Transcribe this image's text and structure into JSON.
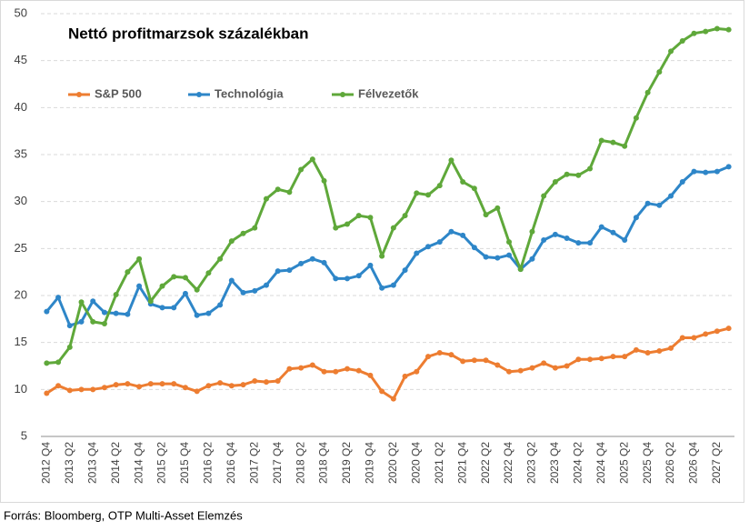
{
  "chart_data": {
    "type": "line",
    "title": "Nettó profitmarzsok százalékban",
    "source": "Forrás: Bloomberg, OTP Multi-Asset Elemzés",
    "categories": [
      "2012 Q4",
      null,
      "2013 Q2",
      null,
      "2013 Q4",
      null,
      "2014 Q2",
      null,
      "2014 Q4",
      null,
      "2015 Q2",
      null,
      "2015 Q4",
      null,
      "2016 Q2",
      null,
      "2016 Q4",
      null,
      "2017 Q2",
      null,
      "2017 Q4",
      null,
      "2018 Q2",
      null,
      "2018 Q4",
      null,
      "2019 Q2",
      null,
      "2019 Q4",
      null,
      "2020 Q2",
      null,
      "2020 Q4",
      null,
      "2021 Q2",
      null,
      "2021 Q4",
      null,
      "2022 Q2",
      null,
      "2022 Q4",
      null,
      "2023 Q2",
      null,
      "2023 Q4",
      null,
      "2024 Q2",
      null,
      "2024 Q4",
      null,
      "2025 Q2",
      null,
      "2025 Q4",
      null,
      "2026 Q2",
      null,
      "2026 Q4",
      null,
      "2027 Q2",
      null
    ],
    "series": [
      {
        "name": "S&P 500",
        "color": "#ed7d31",
        "values": [
          9.6,
          10.4,
          9.9,
          10.0,
          10.0,
          10.2,
          10.5,
          10.6,
          10.3,
          10.6,
          10.6,
          10.6,
          10.2,
          9.8,
          10.4,
          10.7,
          10.4,
          10.5,
          10.9,
          10.8,
          10.9,
          12.2,
          12.3,
          12.6,
          11.9,
          11.9,
          12.2,
          12.0,
          11.5,
          9.8,
          9.0,
          11.4,
          11.9,
          13.5,
          13.9,
          13.7,
          13.0,
          13.1,
          13.1,
          12.6,
          11.9,
          12.0,
          12.3,
          12.8,
          12.3,
          12.5,
          13.2,
          13.2,
          13.3,
          13.5,
          13.5,
          14.2,
          13.9,
          14.1,
          14.4,
          15.5,
          15.5,
          15.9,
          16.2,
          16.5
        ]
      },
      {
        "name": "Technológia",
        "color": "#2e86c8",
        "values": [
          18.3,
          19.8,
          16.8,
          17.2,
          19.4,
          18.2,
          18.1,
          18.0,
          21.0,
          19.1,
          18.7,
          18.7,
          20.2,
          17.9,
          18.1,
          19.0,
          21.6,
          20.3,
          20.5,
          21.1,
          22.6,
          22.7,
          23.4,
          23.9,
          23.5,
          21.8,
          21.8,
          22.1,
          23.2,
          20.8,
          21.1,
          22.7,
          24.5,
          25.2,
          25.7,
          26.8,
          26.4,
          25.1,
          24.1,
          24.0,
          24.3,
          22.8,
          23.9,
          25.9,
          26.5,
          26.1,
          25.6,
          25.6,
          27.3,
          26.7,
          25.9,
          28.3,
          29.8,
          29.6,
          30.6,
          32.1,
          33.2,
          33.1,
          33.2,
          33.7
        ]
      },
      {
        "name": "Félvezetők",
        "color": "#5fa83a",
        "values": [
          12.8,
          12.9,
          14.5,
          19.3,
          17.2,
          17.0,
          20.1,
          22.5,
          23.9,
          19.4,
          21.0,
          22.0,
          21.9,
          20.6,
          22.4,
          23.9,
          25.8,
          26.6,
          27.2,
          30.3,
          31.3,
          31.0,
          33.4,
          34.5,
          32.2,
          27.2,
          27.6,
          28.5,
          28.3,
          24.2,
          27.2,
          28.5,
          30.9,
          30.7,
          31.7,
          34.4,
          32.1,
          31.4,
          28.6,
          29.3,
          25.7,
          22.8,
          26.8,
          30.6,
          32.1,
          32.9,
          32.8,
          33.5,
          36.5,
          36.3,
          35.9,
          38.9,
          41.6,
          43.8,
          46.0,
          47.1,
          47.9,
          48.1,
          48.4,
          48.3
        ]
      }
    ],
    "ylim": [
      5,
      50
    ],
    "yticks": [
      5,
      10,
      15,
      20,
      25,
      30,
      35,
      40,
      45,
      50
    ],
    "grid": true
  }
}
